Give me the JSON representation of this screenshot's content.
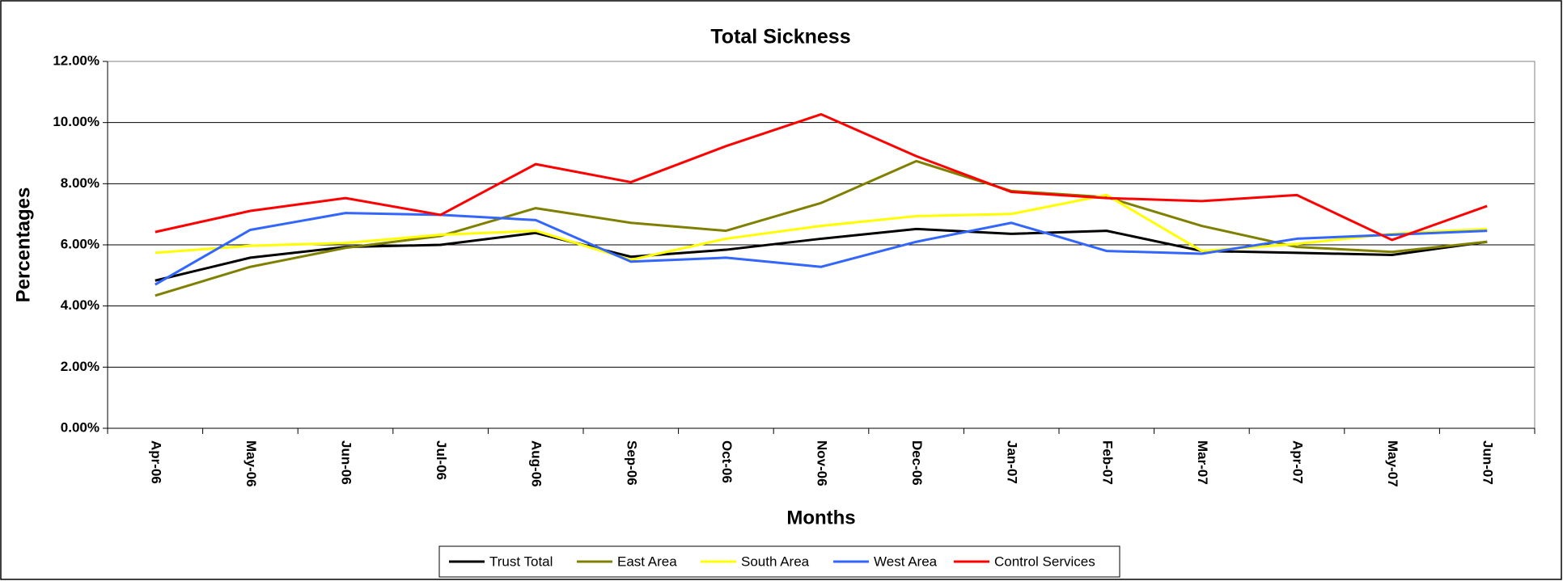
{
  "chart_data": {
    "type": "line",
    "title": "Total Sickness",
    "x_label": "Months",
    "y_label": "Percentages",
    "categories": [
      "Apr-06",
      "May-06",
      "Jun-06",
      "Jul-06",
      "Aug-06",
      "Sep-06",
      "Oct-06",
      "Nov-06",
      "Dec-06",
      "Jan-07",
      "Feb-07",
      "Mar-07",
      "Apr-07",
      "May-07",
      "Jun-07"
    ],
    "series": [
      {
        "name": "Trust Total",
        "color": "#000000",
        "values": [
          4.83,
          5.58,
          5.93,
          6.0,
          6.39,
          5.61,
          5.84,
          6.2,
          6.52,
          6.36,
          6.46,
          5.8,
          5.74,
          5.67,
          6.1
        ]
      },
      {
        "name": "East Area",
        "color": "#808000",
        "values": [
          4.34,
          5.28,
          5.9,
          6.29,
          7.2,
          6.72,
          6.46,
          7.37,
          8.74,
          7.76,
          7.56,
          6.62,
          5.93,
          5.77,
          6.1
        ]
      },
      {
        "name": "South Area",
        "color": "#ffff00",
        "values": [
          5.74,
          5.97,
          6.06,
          6.33,
          6.46,
          5.51,
          6.2,
          6.62,
          6.94,
          7.01,
          7.63,
          5.8,
          6.03,
          6.36,
          6.52
        ]
      },
      {
        "name": "West Area",
        "color": "#3366ff",
        "values": [
          4.7,
          6.49,
          7.04,
          6.98,
          6.81,
          5.45,
          5.58,
          5.28,
          6.1,
          6.72,
          5.8,
          5.71,
          6.2,
          6.33,
          6.46
        ]
      },
      {
        "name": "Control Services",
        "color": "#ff0000",
        "values": [
          6.42,
          7.11,
          7.53,
          6.98,
          8.64,
          8.05,
          9.23,
          10.27,
          8.9,
          7.73,
          7.53,
          7.43,
          7.63,
          6.16,
          7.27
        ]
      }
    ],
    "ylim": [
      0,
      12
    ],
    "yticks": [
      {
        "value": 0,
        "label": "0.00%"
      },
      {
        "value": 2,
        "label": "2.00%"
      },
      {
        "value": 4,
        "label": "4.00%"
      },
      {
        "value": 6,
        "label": "6.00%"
      },
      {
        "value": 8,
        "label": "8.00%"
      },
      {
        "value": 10,
        "label": "10.00%"
      },
      {
        "value": 12,
        "label": "12.00%"
      }
    ],
    "grid": true,
    "legend": "bottom"
  }
}
